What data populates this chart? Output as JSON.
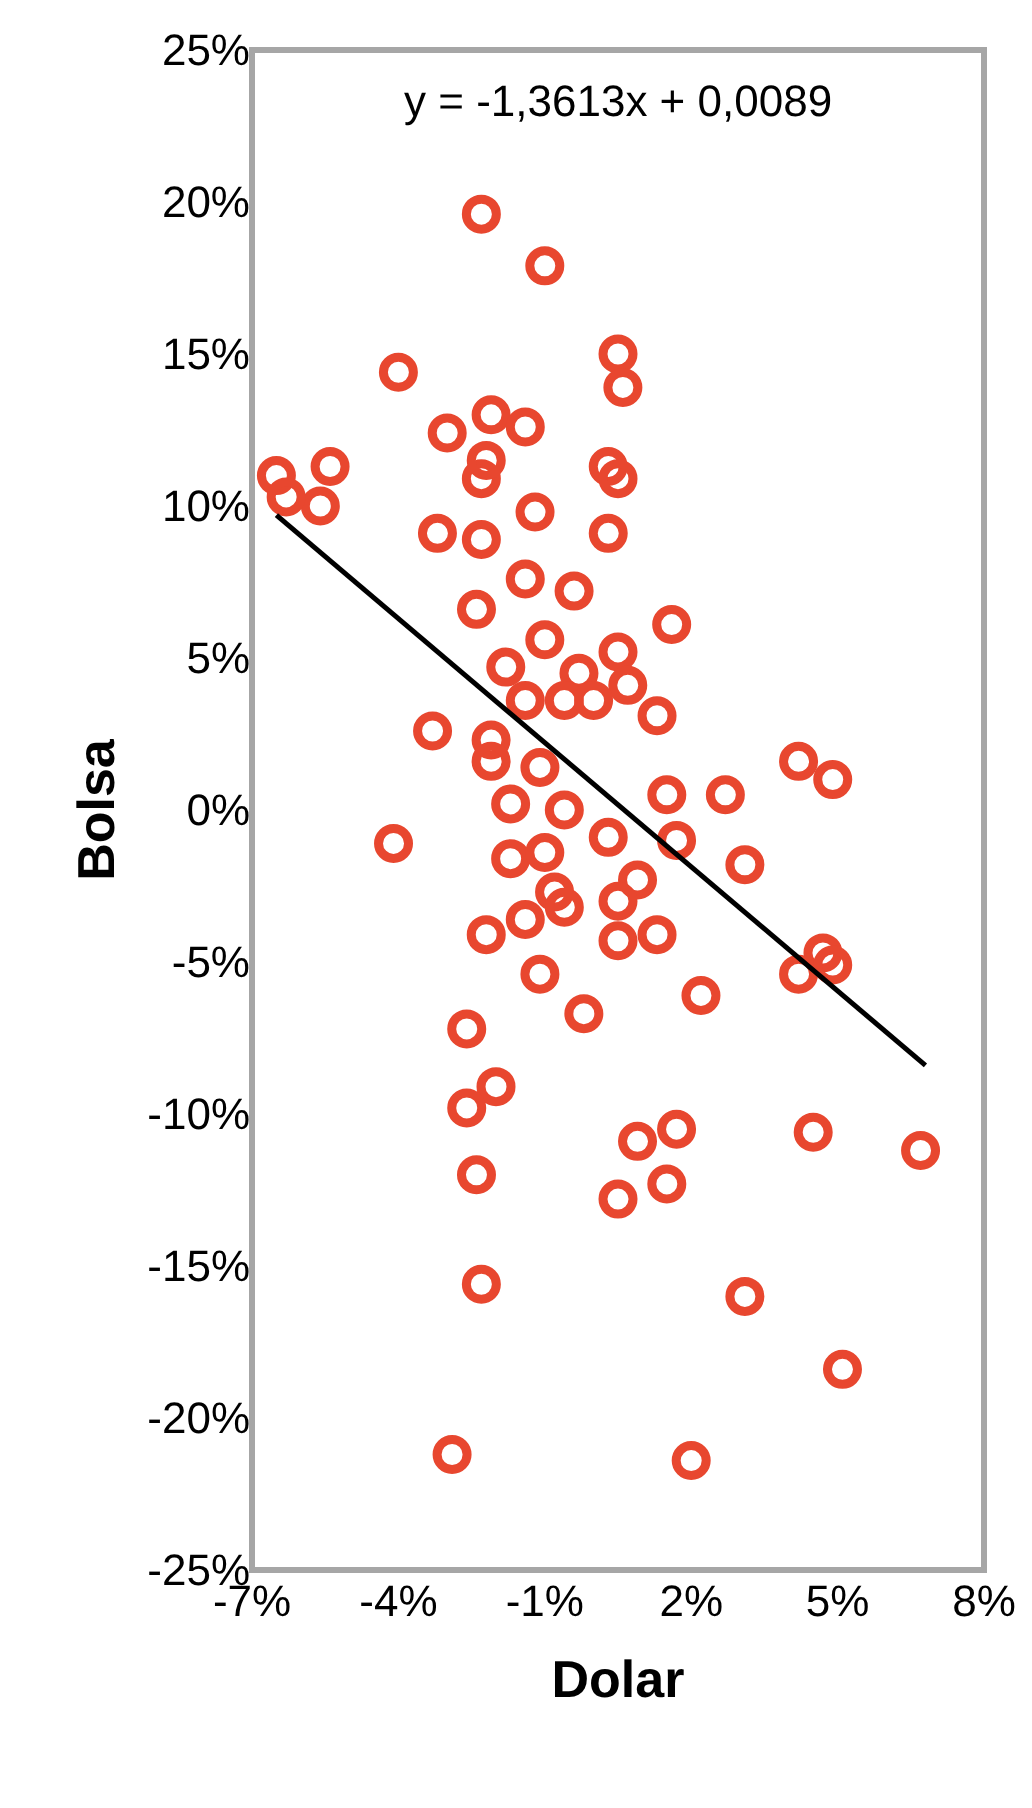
{
  "chart_data": {
    "type": "scatter",
    "xlabel": "Dolar",
    "ylabel": "Bolsa",
    "grid": false,
    "marker": "circle",
    "annotations": [
      "y = -1,3613x + 0,0089"
    ],
    "xlim": [
      -7,
      8
    ],
    "xticks": [
      {
        "value": -7,
        "label": "-7%"
      },
      {
        "value": -4,
        "label": "-4%"
      },
      {
        "value": -1,
        "label": "-1%"
      },
      {
        "value": 2,
        "label": "2%"
      },
      {
        "value": 5,
        "label": "5%"
      },
      {
        "value": 8,
        "label": "8%"
      }
    ],
    "ylim": [
      -25,
      25
    ],
    "yticks": [
      {
        "value": -25,
        "label": "-25%"
      },
      {
        "value": -20,
        "label": "-20%"
      },
      {
        "value": -15,
        "label": "-15%"
      },
      {
        "value": -10,
        "label": "-10%"
      },
      {
        "value": -5,
        "label": "-5%"
      },
      {
        "value": 0,
        "label": "0%"
      },
      {
        "value": 5,
        "label": "5%"
      },
      {
        "value": 10,
        "label": "10%"
      },
      {
        "value": 15,
        "label": "15%"
      },
      {
        "value": 20,
        "label": "20%"
      },
      {
        "value": 25,
        "label": "25%"
      }
    ],
    "series": [
      {
        "color": "#e8472f",
        "x": [
          -2.3,
          -1.0,
          -4.0,
          0.5,
          0.6,
          -6.5,
          -5.4,
          -5.6,
          -6.3,
          -3.0,
          -2.1,
          -1.4,
          -2.3,
          -2.2,
          -1.2,
          0.3,
          0.5,
          0.3,
          -3.2,
          -2.3,
          -2.4,
          -1.4,
          -0.4,
          1.6,
          -1.8,
          -1.0,
          -0.3,
          0.5,
          0.7,
          -0.6,
          0.0,
          -1.4,
          1.3,
          -3.3,
          -2.1,
          -2.1,
          -1.1,
          4.2,
          4.9,
          2.7,
          1.5,
          -1.7,
          -0.6,
          -4.1,
          0.3,
          1.7,
          3.1,
          -1.7,
          -1.0,
          0.9,
          0.5,
          -0.8,
          -2.2,
          -1.4,
          -0.6,
          0.5,
          1.3,
          -1.1,
          -0.2,
          2.2,
          4.2,
          4.7,
          4.9,
          -2.6,
          -2.0,
          -2.6,
          -2.4,
          0.9,
          1.7,
          0.5,
          1.5,
          4.5,
          6.7,
          -2.3,
          3.1,
          5.1,
          -2.9,
          2.0
        ],
        "values": [
          19.6,
          17.9,
          14.4,
          15.0,
          13.9,
          11.0,
          11.3,
          10.0,
          10.3,
          12.4,
          13.0,
          12.6,
          10.9,
          11.5,
          9.8,
          11.3,
          10.9,
          9.1,
          9.1,
          8.9,
          6.6,
          7.6,
          7.2,
          6.1,
          4.7,
          5.6,
          4.5,
          5.2,
          4.1,
          3.6,
          3.6,
          3.6,
          3.1,
          2.6,
          2.3,
          1.6,
          1.4,
          1.6,
          1.0,
          0.5,
          0.5,
          0.2,
          0.0,
          -1.1,
          -0.9,
          -1.0,
          -1.8,
          -1.6,
          -1.4,
          -2.3,
          -3.0,
          -2.7,
          -4.1,
          -3.6,
          -3.2,
          -4.3,
          -4.1,
          -5.4,
          -6.7,
          -6.1,
          -5.4,
          -4.7,
          -5.1,
          -7.2,
          -9.1,
          -9.8,
          -12.0,
          -10.9,
          -10.5,
          -12.8,
          -12.3,
          -10.6,
          -11.2,
          -15.6,
          -16.0,
          -18.4,
          -21.2,
          -21.4
        ]
      },
      {
        "type": "line",
        "marker": "none",
        "color": "#000000",
        "x": [
          -6.5,
          6.8
        ],
        "values": [
          9.7,
          -8.4
        ]
      }
    ]
  }
}
